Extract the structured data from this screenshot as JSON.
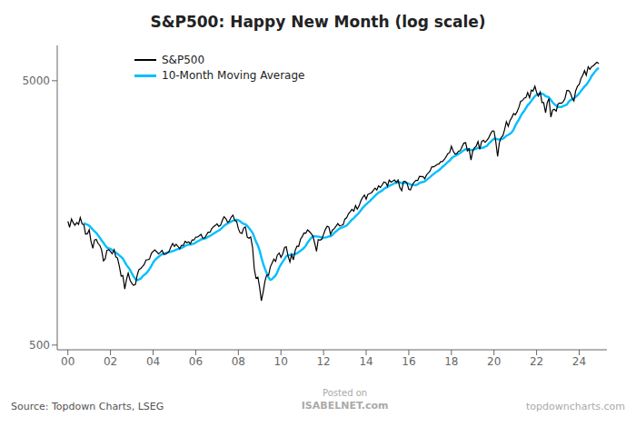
{
  "chart_data": {
    "type": "line",
    "title": "S&P500: Happy New Month (log scale)",
    "annotations": [
      "Source: Topdown Charts, LSEG",
      "Posted on",
      "ISABELNET.com",
      "topdowncharts.com"
    ],
    "log": "y",
    "grid": false,
    "legend": "upper left",
    "xlim": [
      1999.5,
      2025.3
    ],
    "xticks": [
      {
        "value": 2000,
        "label": "00"
      },
      {
        "value": 2002,
        "label": "02"
      },
      {
        "value": 2004,
        "label": "04"
      },
      {
        "value": 2006,
        "label": "06"
      },
      {
        "value": 2008,
        "label": "08"
      },
      {
        "value": 2010,
        "label": "10"
      },
      {
        "value": 2012,
        "label": "12"
      },
      {
        "value": 2014,
        "label": "14"
      },
      {
        "value": 2016,
        "label": "16"
      },
      {
        "value": 2018,
        "label": "18"
      },
      {
        "value": 2020,
        "label": "20"
      },
      {
        "value": 2022,
        "label": "22"
      },
      {
        "value": 2024,
        "label": "24"
      }
    ],
    "ylim": [
      480,
      6800
    ],
    "yticks": [
      500,
      5000
    ],
    "x": [
      2000.0,
      2000.08,
      2000.17,
      2000.25,
      2000.33,
      2000.42,
      2000.5,
      2000.58,
      2000.67,
      2000.75,
      2000.83,
      2000.92,
      2001.0,
      2001.08,
      2001.17,
      2001.25,
      2001.33,
      2001.42,
      2001.5,
      2001.58,
      2001.67,
      2001.75,
      2001.83,
      2001.92,
      2002.0,
      2002.08,
      2002.17,
      2002.25,
      2002.33,
      2002.42,
      2002.5,
      2002.58,
      2002.67,
      2002.75,
      2002.83,
      2002.92,
      2003.0,
      2003.08,
      2003.17,
      2003.25,
      2003.33,
      2003.42,
      2003.5,
      2003.58,
      2003.67,
      2003.75,
      2003.83,
      2003.92,
      2004.0,
      2004.08,
      2004.17,
      2004.25,
      2004.33,
      2004.42,
      2004.5,
      2004.58,
      2004.67,
      2004.75,
      2004.83,
      2004.92,
      2005.0,
      2005.08,
      2005.17,
      2005.25,
      2005.33,
      2005.42,
      2005.5,
      2005.58,
      2005.67,
      2005.75,
      2005.83,
      2005.92,
      2006.0,
      2006.08,
      2006.17,
      2006.25,
      2006.33,
      2006.42,
      2006.5,
      2006.58,
      2006.67,
      2006.75,
      2006.83,
      2006.92,
      2007.0,
      2007.08,
      2007.17,
      2007.25,
      2007.33,
      2007.42,
      2007.5,
      2007.58,
      2007.67,
      2007.75,
      2007.83,
      2007.92,
      2008.0,
      2008.08,
      2008.17,
      2008.25,
      2008.33,
      2008.42,
      2008.5,
      2008.58,
      2008.67,
      2008.75,
      2008.83,
      2008.92,
      2009.0,
      2009.08,
      2009.17,
      2009.25,
      2009.33,
      2009.42,
      2009.5,
      2009.58,
      2009.67,
      2009.75,
      2009.83,
      2009.92,
      2010.0,
      2010.08,
      2010.17,
      2010.25,
      2010.33,
      2010.42,
      2010.5,
      2010.58,
      2010.67,
      2010.75,
      2010.83,
      2010.92,
      2011.0,
      2011.08,
      2011.17,
      2011.25,
      2011.33,
      2011.42,
      2011.5,
      2011.58,
      2011.67,
      2011.75,
      2011.83,
      2011.92,
      2012.0,
      2012.08,
      2012.17,
      2012.25,
      2012.33,
      2012.42,
      2012.5,
      2012.58,
      2012.67,
      2012.75,
      2012.83,
      2012.92,
      2013.0,
      2013.08,
      2013.17,
      2013.25,
      2013.33,
      2013.42,
      2013.5,
      2013.58,
      2013.67,
      2013.75,
      2013.83,
      2013.92,
      2014.0,
      2014.08,
      2014.17,
      2014.25,
      2014.33,
      2014.42,
      2014.5,
      2014.58,
      2014.67,
      2014.75,
      2014.83,
      2014.92,
      2015.0,
      2015.08,
      2015.17,
      2015.25,
      2015.33,
      2015.42,
      2015.5,
      2015.58,
      2015.67,
      2015.75,
      2015.83,
      2015.92,
      2016.0,
      2016.08,
      2016.17,
      2016.25,
      2016.33,
      2016.42,
      2016.5,
      2016.58,
      2016.67,
      2016.75,
      2016.83,
      2016.92,
      2017.0,
      2017.08,
      2017.17,
      2017.25,
      2017.33,
      2017.42,
      2017.5,
      2017.58,
      2017.67,
      2017.75,
      2017.83,
      2017.92,
      2018.0,
      2018.08,
      2018.17,
      2018.25,
      2018.33,
      2018.42,
      2018.5,
      2018.58,
      2018.67,
      2018.75,
      2018.83,
      2018.92,
      2019.0,
      2019.08,
      2019.17,
      2019.25,
      2019.33,
      2019.42,
      2019.5,
      2019.58,
      2019.67,
      2019.75,
      2019.83,
      2019.92,
      2020.0,
      2020.08,
      2020.17,
      2020.25,
      2020.33,
      2020.42,
      2020.5,
      2020.58,
      2020.67,
      2020.75,
      2020.83,
      2020.92,
      2021.0,
      2021.08,
      2021.17,
      2021.25,
      2021.33,
      2021.42,
      2021.5,
      2021.58,
      2021.67,
      2021.75,
      2021.83,
      2021.92,
      2022.0,
      2022.08,
      2022.17,
      2022.25,
      2022.33,
      2022.42,
      2022.5,
      2022.58,
      2022.67,
      2022.75,
      2022.83,
      2022.92,
      2023.0,
      2023.08,
      2023.17,
      2023.25,
      2023.33,
      2023.42,
      2023.5,
      2023.58,
      2023.67,
      2023.75,
      2023.83,
      2023.92,
      2024.0,
      2024.08,
      2024.17,
      2024.25,
      2024.33,
      2024.42,
      2024.5,
      2024.58,
      2024.67,
      2024.75,
      2024.83,
      2024.92
    ],
    "series": [
      {
        "name": "S&P500",
        "color": "#000000",
        "values": [
          1469.25,
          1394.46,
          1498.58,
          1452.43,
          1420.6,
          1454.6,
          1430.83,
          1517.68,
          1436.51,
          1429.4,
          1314.95,
          1320.28,
          1366.01,
          1239.94,
          1160.33,
          1249.46,
          1255.82,
          1211.23,
          1190.35,
          1148.08,
          1040.94,
          1059.78,
          1139.45,
          1148.08,
          1130.2,
          1106.73,
          1147.39,
          1076.92,
          1067.14,
          989.82,
          911.62,
          916.07,
          815.28,
          885.76,
          936.31,
          879.82,
          855.7,
          841.15,
          848.18,
          916.92,
          963.59,
          974.5,
          990.31,
          1008.01,
          1050.71,
          1050.71,
          1058.2,
          1111.92,
          1131.13,
          1144.94,
          1126.21,
          1107.3,
          1120.68,
          1140.84,
          1101.72,
          1104.24,
          1114.58,
          1130.2,
          1173.82,
          1211.92,
          1181.27,
          1203.6,
          1180.59,
          1156.85,
          1191.5,
          1191.33,
          1234.18,
          1220.33,
          1228.81,
          1207.01,
          1249.48,
          1248.29,
          1280.08,
          1280.66,
          1294.87,
          1310.61,
          1270.09,
          1270.2,
          1303.82,
          1335.85,
          1335.85,
          1377.94,
          1400.63,
          1418.3,
          1438.24,
          1406.82,
          1420.86,
          1482.37,
          1530.62,
          1503.35,
          1455.27,
          1473.99,
          1526.75,
          1549.38,
          1481.14,
          1468.36,
          1378.55,
          1330.63,
          1322.7,
          1385.59,
          1400.38,
          1280.0,
          1267.38,
          1282.83,
          1166.36,
          968.75,
          896.24,
          903.25,
          825.88,
          735.09,
          797.87,
          872.81,
          919.14,
          919.32,
          987.48,
          1020.62,
          1057.08,
          1036.19,
          1095.63,
          1115.1,
          1073.87,
          1104.49,
          1169.43,
          1178.1,
          1089.41,
          1030.71,
          1101.6,
          1049.33,
          1141.2,
          1183.26,
          1180.55,
          1257.64,
          1286.12,
          1327.22,
          1325.83,
          1363.61,
          1345.2,
          1320.64,
          1292.28,
          1218.89,
          1131.42,
          1253.3,
          1246.96,
          1257.6,
          1312.41,
          1365.68,
          1408.47,
          1397.91,
          1310.33,
          1362.16,
          1379.32,
          1406.58,
          1440.67,
          1412.16,
          1416.18,
          1426.19,
          1498.11,
          1514.68,
          1569.19,
          1597.57,
          1630.74,
          1606.28,
          1685.73,
          1632.97,
          1681.55,
          1756.54,
          1805.81,
          1848.36,
          1782.59,
          1859.45,
          1872.34,
          1883.95,
          1923.57,
          1960.23,
          1930.67,
          2003.37,
          1972.29,
          2018.05,
          2067.56,
          2058.9,
          1994.99,
          2104.5,
          2067.89,
          2085.51,
          2107.39,
          2063.11,
          2103.84,
          1972.18,
          1920.03,
          2079.36,
          2080.41,
          2043.94,
          1940.24,
          1932.23,
          2021.95,
          2065.3,
          2096.96,
          2098.86,
          2173.6,
          2170.95,
          2168.27,
          2126.15,
          2198.81,
          2238.83,
          2278.87,
          2363.64,
          2362.72,
          2384.2,
          2411.8,
          2423.41,
          2470.3,
          2471.65,
          2519.36,
          2575.26,
          2647.58,
          2673.61,
          2823.81,
          2713.83,
          2640.87,
          2648.05,
          2705.27,
          2718.37,
          2816.29,
          2901.52,
          2913.98,
          2711.74,
          2760.17,
          2506.85,
          2704.1,
          2784.49,
          2834.4,
          2945.83,
          2752.06,
          2941.76,
          2980.38,
          2926.46,
          2976.74,
          3037.56,
          3140.98,
          3230.78,
          3225.52,
          2954.22,
          2584.59,
          2912.43,
          3044.31,
          3100.29,
          3271.12,
          3500.31,
          3363.47,
          3536.01,
          3621.63,
          3756.07,
          3714.24,
          3811.15,
          3972.89,
          4181.17,
          4204.11,
          4297.5,
          4319.94,
          4509.37,
          4307.54,
          4605.38,
          4567.0,
          4766.18,
          4515.55,
          4373.94,
          4530.41,
          4132.15,
          4132.15,
          3785.38,
          4130.29,
          4280.15,
          3640.47,
          3871.98,
          3901.06,
          3839.5,
          4076.6,
          4119.21,
          4109.31,
          4169.48,
          4282.37,
          4588.96,
          4588.96,
          4507.66,
          4288.05,
          4193.8,
          4567.8,
          4769.83,
          4845.65,
          5096.27,
          5254.35,
          5460.48,
          5243.77,
          5648.4,
          5522.3,
          5648.4,
          5702.0,
          5793.0,
          5870.0,
          5800.0
        ]
      },
      {
        "name": "10-Month Moving Average",
        "color": "#00bfff",
        "values": [
          null,
          null,
          null,
          null,
          null,
          null,
          null,
          null,
          null,
          1450.434,
          1435.004,
          1427.586,
          1414.329,
          1393.08,
          1367.053,
          1346.539,
          1329.038,
          1298.393,
          1273.777,
          1245.645,
          1218.244,
          1192.194,
          1169.538,
          1160.352,
          1157.339,
          1143.066,
          1132.223,
          1118.792,
          1106.471,
          1090.645,
          1077.713,
          1063.342,
          1030.925,
          1004.693,
          985.304,
          962.613,
          933.444,
          909.867,
          887.971,
          880.681,
          885.878,
          891.721,
          909.224,
          921.449,
          932.889,
          949.978,
          970.228,
          997.305,
          1025.6,
          1048.402,
          1064.664,
          1077.944,
          1090.981,
          1104.264,
          1109.365,
          1114.718,
          1120.356,
          1122.184,
          1126.453,
          1133.151,
          1138.657,
          1148.287,
          1154.278,
          1155.879,
          1164.857,
          1173.566,
          1185.526,
          1194.539,
          1200.038,
          1199.547,
          1206.368,
          1210.837,
          1220.786,
          1233.167,
          1243.504,
          1255.432,
          1259.023,
          1264.01,
          1271.511,
          1284.395,
          1293.032,
          1305.997,
          1318.052,
          1331.816,
          1346.153,
          1355.774,
          1370.851,
          1392.068,
          1414.748,
          1431.498,
          1443.44,
          1453.045,
          1465.657,
          1478.765,
          1483.055,
          1489.209,
          1484.978,
          1469.804,
          1449.012,
          1437.236,
          1431.747,
          1412.348,
          1386.411,
          1359.756,
          1328.278,
          1278.317,
          1230.086,
          1187.348,
          1137.666,
          1072.616,
          1012.365,
          971.646,
          936.822,
          900.471,
          882.583,
          887.77,
          903.854,
          917.148,
          944.123,
          982.124,
          1009.724,
          1032.892,
          1057.921,
          1083.799,
          1093.992,
          1095.001,
          1099.453,
          1100.767,
          1105.324,
          1112.14,
          1122.808,
          1138.123,
          1149.792,
          1164.704,
          1188.346,
          1221.636,
          1245.996,
          1273.127,
          1288.235,
          1291.798,
          1286.885,
          1286.451,
          1282.535,
          1275.573,
          1274.231,
          1274.438,
          1280.765,
          1288.492,
          1290.297,
          1304.624,
          1329.414,
          1344.742,
          1364.113,
          1379.569,
          1389.946,
          1395.997,
          1404.961,
          1416.638,
          1442.524,
          1466.065,
          1491.207,
          1511.177,
          1535.683,
          1557.764,
          1584.301,
          1617.336,
          1648.106,
          1681.474,
          1702.814,
          1729.002,
          1753.162,
          1780.929,
          1804.713,
          1837.439,
          1862.351,
          1887.034,
          1903.682,
          1920.651,
          1949.148,
          1969.093,
          1981.358,
          2003.413,
          2017.845,
          2030.373,
          2048.045,
          2054.019,
          2067.174,
          2062.587,
          2047.834,
          2049.88,
          2058.422,
          2052.366,
          2039.601,
          2024.273,
          2015.729,
          2015.948,
          2015.26,
          2027.928,
          2053.285,
          2062.444,
          2071.23,
          2079.451,
          2105.308,
          2135.968,
          2161.66,
          2191.494,
          2218.07,
          2246.604,
          2270.424,
          2295.67,
          2325.873,
          2360.423,
          2392.478,
          2426.121,
          2462.992,
          2493.989,
          2540.098,
          2573.061,
          2595.968,
          2618.432,
          2641.929,
          2666.601,
          2696.294,
          2728.92,
          2755.56,
          2759.373,
          2753.009,
          2732.311,
          2738.634,
          2752.278,
          2765.191,
          2787.937,
          2781.514,
          2785.538,
          2792.178,
          2813.65,
          2835.307,
          2888.378,
          2932.066,
          2976.695,
          3015.807,
          3016.646,
          2999.899,
          2996.966,
          3003.359,
          3020.742,
          3050.18,
          3096.455,
          3118.704,
          3149.227,
          3188.838,
          3269.023,
          3381.988,
          3471.86,
          3564.718,
          3672.806,
          3766.105,
          3845.824,
          3941.471,
          4038.807,
          4107.398,
          4192.329,
          4277.605,
          4373.108,
          4427.374,
          4446.651,
          4479.281,
          4462.746,
          4443.967,
          4371.568,
          4353.843,
          4321.32,
          4228.667,
          4139.247,
          4077.798,
          4024.354,
          3978.973,
          3977.679,
          3975.395,
          4013.805,
          4029.013,
          4059.894,
          4154.743,
          4218.311,
          4257.01,
          4292.44,
          4341.56,
          4406.622,
          4480.256,
          4572.935,
          4670.133,
          4757.285,
          4822.766,
          4936.84,
          5060.265,
          5205.725,
          5319.145,
          5421.462,
          5523.897,
          5594.27
        ]
      }
    ]
  }
}
